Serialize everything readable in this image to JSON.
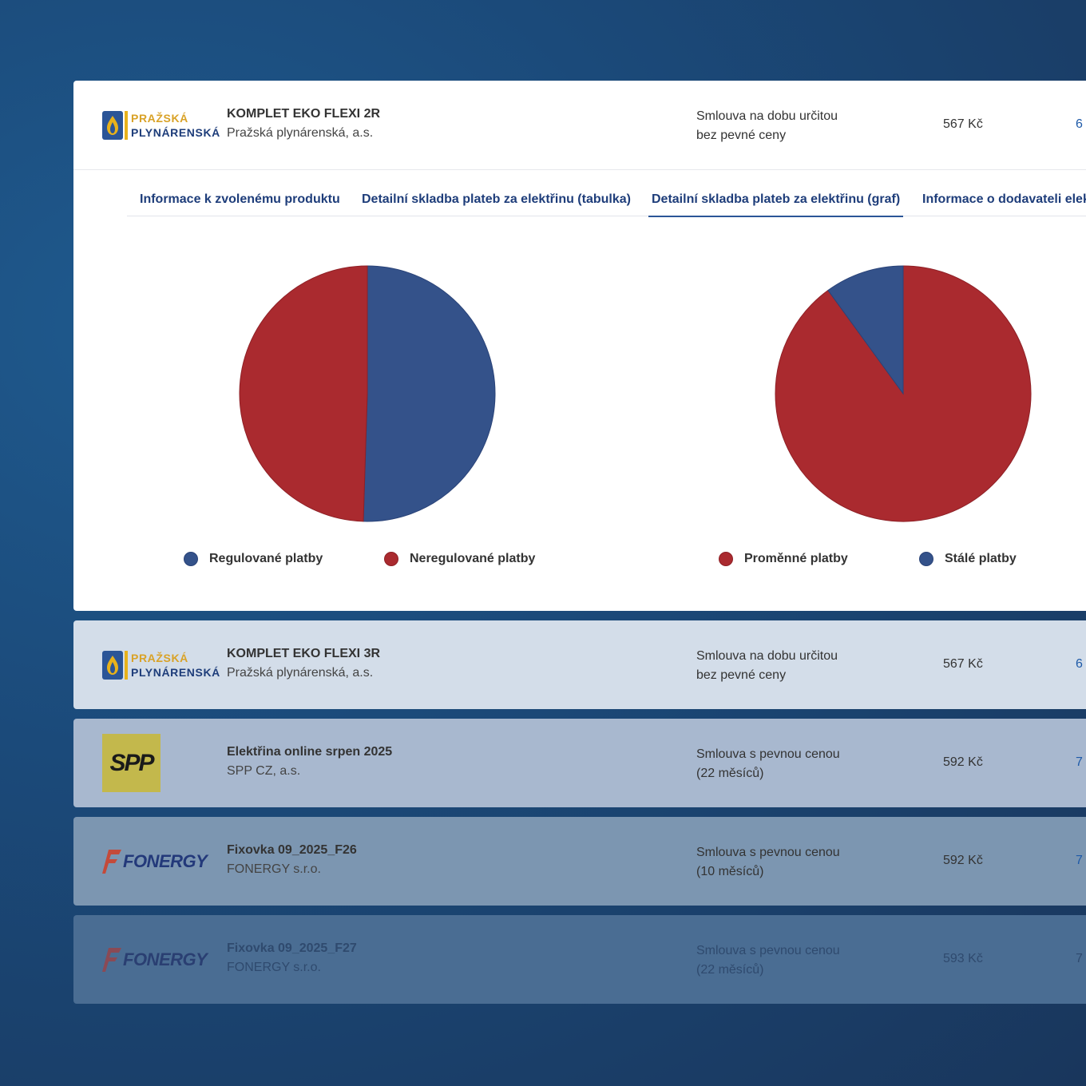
{
  "expanded": {
    "product_name": "KOMPLET EKO FLEXI 2R",
    "company": "Pražská plynárenská, a.s.",
    "contract_line1": "Smlouva na dobu určitou",
    "contract_line2": "bez pevné ceny",
    "price": "567 Kč",
    "more": "6",
    "logo": {
      "line1": "PRAŽSKÁ",
      "line2": "PLYNÁRENSKÁ"
    }
  },
  "tabs": [
    {
      "label": "Informace k zvolenému produktu"
    },
    {
      "label": "Detailní skladba plateb za elektřinu (tabulka)"
    },
    {
      "label": "Detailní skladba plateb za elektřinu (graf)",
      "active": true
    },
    {
      "label": "Informace o dodavateli elekt"
    }
  ],
  "chart_data": [
    {
      "type": "pie",
      "title": "",
      "slices": [
        {
          "label": "Regulované platby",
          "value": 50.5,
          "color": "#34528a"
        },
        {
          "label": "Neregulované platby",
          "value": 49.5,
          "color": "#aa2a2f"
        }
      ],
      "legend": "bottom"
    },
    {
      "type": "pie",
      "title": "",
      "slices": [
        {
          "label": "Proměnné platby",
          "value": 90,
          "color": "#aa2a2f"
        },
        {
          "label": "Stálé platby",
          "value": 10,
          "color": "#34528a"
        }
      ],
      "legend": "bottom"
    }
  ],
  "rows": [
    {
      "product_name": "KOMPLET EKO FLEXI 3R",
      "company": "Pražská plynárenská, a.s.",
      "contract_line1": "Smlouva na dobu určitou",
      "contract_line2": "bez pevné ceny",
      "price": "567 Kč",
      "more": "6",
      "logo": {
        "line1": "PRAŽSKÁ",
        "line2": "PLYNÁRENSKÁ"
      }
    },
    {
      "product_name": "Elektřina online srpen 2025",
      "company": "SPP CZ, a.s.",
      "contract_line1": "Smlouva s pevnou cenou",
      "contract_line2": "(22 měsíců)",
      "price": "592 Kč",
      "more": "7",
      "logo": {
        "text": "SPP"
      }
    },
    {
      "product_name": "Fixovka 09_2025_F26",
      "company": "FONERGY s.r.o.",
      "contract_line1": "Smlouva s pevnou cenou",
      "contract_line2": "(10 měsíců)",
      "price": "592 Kč",
      "more": "7",
      "logo": {
        "text": "FONERGY"
      }
    },
    {
      "product_name": "Fixovka 09_2025_F27",
      "company": "FONERGY s.r.o.",
      "contract_line1": "Smlouva s pevnou cenou",
      "contract_line2": "(22 měsíců)",
      "price": "593 Kč",
      "more": "7",
      "logo": {
        "text": "FONERGY"
      }
    }
  ],
  "colors": {
    "accent": "#2b5597",
    "red": "#aa2a2f",
    "blue": "#34528a"
  }
}
